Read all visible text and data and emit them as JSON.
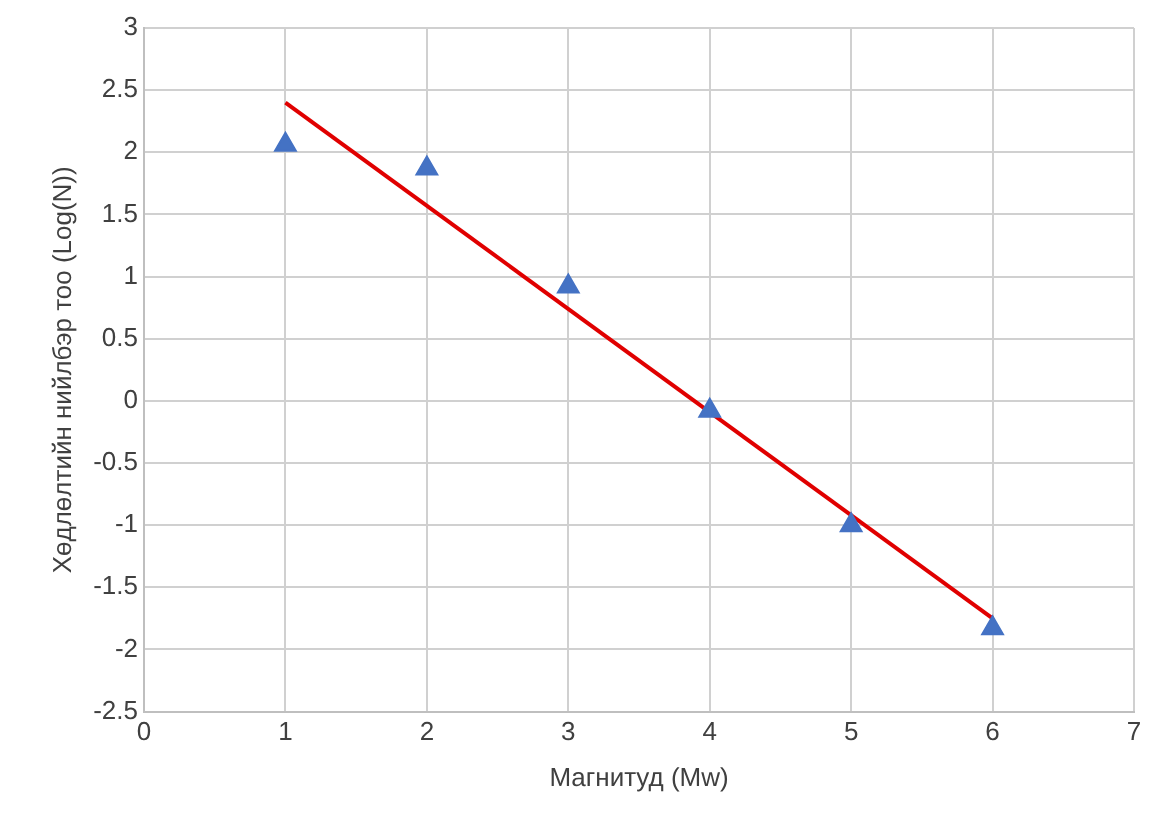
{
  "chart_data": {
    "type": "scatter",
    "xlabel": "Магнитуд (Mw)",
    "ylabel": "Хөдлөлтийн нийлбэр тоо (Log(N))",
    "series": [
      {
        "type": "scatter",
        "color": "#4472c4",
        "x": [
          1,
          2,
          3,
          4,
          5,
          6
        ],
        "values": [
          2.06,
          1.87,
          0.92,
          -0.08,
          -1.0,
          -1.83
        ],
        "marker": "triangle"
      },
      {
        "type": "line",
        "color": "#e00000",
        "x": [
          1,
          6
        ],
        "values": [
          2.4,
          -1.75
        ],
        "marker": "none"
      }
    ],
    "xlim": [
      0,
      7
    ],
    "xticks": [
      0,
      1,
      2,
      3,
      4,
      5,
      6,
      7
    ],
    "ylim": [
      -2.5,
      3
    ],
    "yticks": [
      -2.5,
      -2,
      -1.5,
      -1,
      -0.5,
      0,
      0.5,
      1,
      1.5,
      2,
      2.5,
      3
    ],
    "grid": true,
    "legend": false
  }
}
